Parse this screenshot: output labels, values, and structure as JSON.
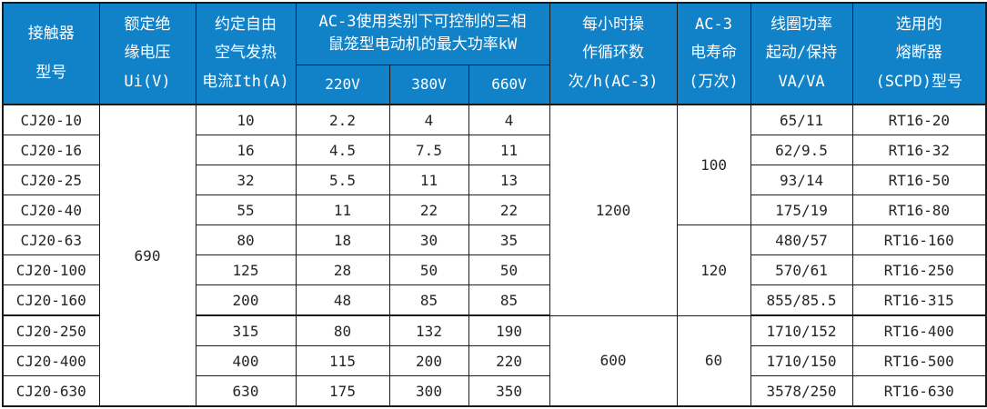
{
  "table": {
    "colors": {
      "header_bg": "#1282c8",
      "header_text": "#ffffff",
      "border": "#1a1a1a",
      "body_text": "#262626"
    },
    "header": {
      "model": "接触器\n型号",
      "ui": "额定绝\n缘电压\nUi(V)",
      "ith": "约定自由\n空气发热\n电流Ith(A)",
      "kw_group": "AC-3使用类别下可控制的三相\n鼠笼型电动机的最大功率kW",
      "sub_220": "220V",
      "sub_380": "380V",
      "sub_660": "660V",
      "cycles": "每小时操\n作循环数\n次/h(AC-3)",
      "life": "AC-3\n电寿命\n(万次)",
      "coil": "线圈功率\n起动/保持\nVA/VA",
      "fuse": "选用的\n熔断器\n(SCPD)型号"
    },
    "rows": [
      {
        "model": "CJ20-10",
        "ith": "10",
        "kw220": "2.2",
        "kw380": "4",
        "kw660": "4",
        "coil": "65/11",
        "fuse": "RT16-20"
      },
      {
        "model": "CJ20-16",
        "ith": "16",
        "kw220": "4.5",
        "kw380": "7.5",
        "kw660": "11",
        "coil": "62/9.5",
        "fuse": "RT16-32"
      },
      {
        "model": "CJ20-25",
        "ith": "32",
        "kw220": "5.5",
        "kw380": "11",
        "kw660": "13",
        "coil": "93/14",
        "fuse": "RT16-50"
      },
      {
        "model": "CJ20-40",
        "ith": "55",
        "kw220": "11",
        "kw380": "22",
        "kw660": "22",
        "coil": "175/19",
        "fuse": "RT16-80"
      },
      {
        "model": "CJ20-63",
        "ith": "80",
        "kw220": "18",
        "kw380": "30",
        "kw660": "35",
        "coil": "480/57",
        "fuse": "RT16-160"
      },
      {
        "model": "CJ20-100",
        "ith": "125",
        "kw220": "28",
        "kw380": "50",
        "kw660": "50",
        "coil": "570/61",
        "fuse": "RT16-250"
      },
      {
        "model": "CJ20-160",
        "ith": "200",
        "kw220": "48",
        "kw380": "85",
        "kw660": "85",
        "coil": "855/85.5",
        "fuse": "RT16-315"
      },
      {
        "model": "CJ20-250",
        "ith": "315",
        "kw220": "80",
        "kw380": "132",
        "kw660": "190",
        "coil": "1710/152",
        "fuse": "RT16-400"
      },
      {
        "model": "CJ20-400",
        "ith": "400",
        "kw220": "115",
        "kw380": "200",
        "kw660": "220",
        "coil": "1710/150",
        "fuse": "RT16-500"
      },
      {
        "model": "CJ20-630",
        "ith": "630",
        "kw220": "175",
        "kw380": "300",
        "kw660": "350",
        "coil": "3578/250",
        "fuse": "RT16-630"
      }
    ],
    "merged_cells": [
      {
        "col": "ui",
        "value": "690",
        "start": 0,
        "span": 10
      },
      {
        "col": "cycles",
        "value": "1200",
        "start": 0,
        "span": 7
      },
      {
        "col": "cycles",
        "value": "600",
        "start": 7,
        "span": 3
      },
      {
        "col": "life",
        "value": "100",
        "start": 0,
        "span": 4
      },
      {
        "col": "life",
        "value": "120",
        "start": 4,
        "span": 3
      },
      {
        "col": "life",
        "value": "60",
        "start": 7,
        "span": 3
      }
    ],
    "group_end_rows": [
      6
    ]
  }
}
